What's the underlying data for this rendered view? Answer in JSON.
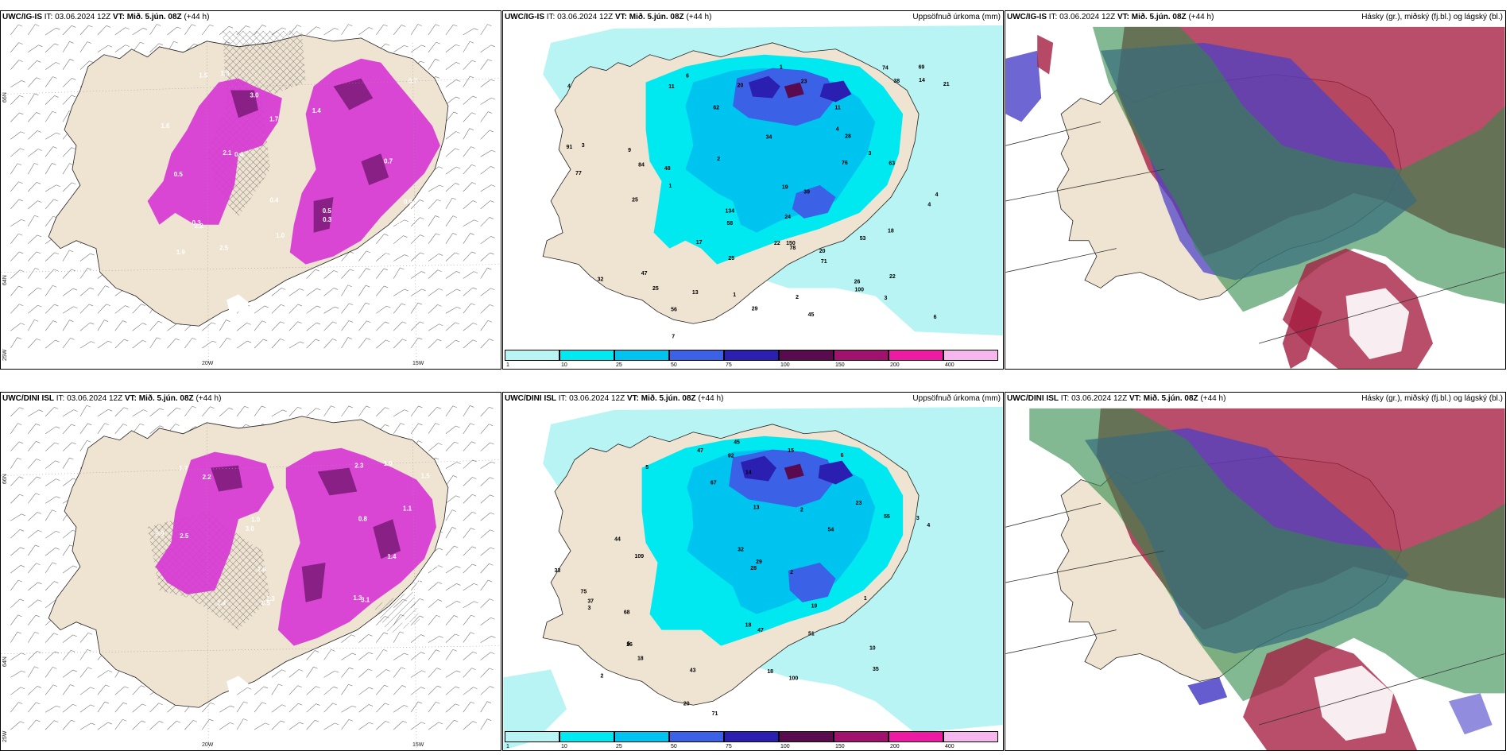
{
  "panels": [
    {
      "model": "UWC/IG-IS",
      "it_label": "IT:",
      "it_value": "03.06.2024 12Z",
      "vt_label": "VT:",
      "vt_value": "Mið. 5.jún. 08Z",
      "lead": "(+44 h)",
      "right_title": ""
    },
    {
      "model": "UWC/IG-IS",
      "it_label": "IT:",
      "it_value": "03.06.2024 12Z",
      "vt_label": "VT:",
      "vt_value": "Mið. 5.jún. 08Z",
      "lead": "(+44 h)",
      "right_title": "Uppsöfnuð úrkoma (mm)"
    },
    {
      "model": "UWC/IG-IS",
      "it_label": "IT:",
      "it_value": "03.06.2024 12Z",
      "vt_label": "VT:",
      "vt_value": "Mið. 5.jún. 08Z",
      "lead": "(+44 h)",
      "right_title": "Hásky (gr.), miðský (fj.bl.) og lágský (bl.)"
    },
    {
      "model": "UWC/DINI ISL",
      "it_label": "IT:",
      "it_value": "03.06.2024 12Z",
      "vt_label": "VT:",
      "vt_value": "Mið. 5.jún. 08Z",
      "lead": "(+44 h)",
      "right_title": ""
    },
    {
      "model": "UWC/DINI ISL",
      "it_label": "IT:",
      "it_value": "03.06.2024 12Z",
      "vt_label": "VT:",
      "vt_value": "Mið. 5.jún. 08Z",
      "lead": "(+44 h)",
      "right_title": "Uppsöfnuð úrkoma (mm)"
    },
    {
      "model": "UWC/DINI ISL",
      "it_label": "IT:",
      "it_value": "03.06.2024 12Z",
      "vt_label": "VT:",
      "vt_value": "Mið. 5.jún. 08Z",
      "lead": "(+44 h)",
      "right_title": "Hásky (gr.), miðský (fj.bl.) og lágský (bl.)"
    }
  ],
  "grid_labels": {
    "lat_66": "66N",
    "lat_64": "64N",
    "lon_25": "25W",
    "lon_20": "20W",
    "lon_15": "15W"
  },
  "legend": {
    "bins": [
      {
        "label": "1",
        "color": "#b8f4f4"
      },
      {
        "label": "10",
        "color": "#00e8f0"
      },
      {
        "label": "25",
        "color": "#00c4f0"
      },
      {
        "label": "50",
        "color": "#3b62e6"
      },
      {
        "label": "75",
        "color": "#2a1fb0"
      },
      {
        "label": "100",
        "color": "#5a0a4e"
      },
      {
        "label": "150",
        "color": "#a0126e"
      },
      {
        "label": "200",
        "color": "#ee1aa4"
      },
      {
        "label": "400",
        "color": "#f6b6ee"
      }
    ]
  },
  "precip_values": {
    "top": [
      "45",
      "11",
      "47",
      "9",
      "3",
      "2",
      "4",
      "1",
      "58",
      "25",
      "32",
      "91",
      "134",
      "150",
      "76",
      "74",
      "77",
      "38",
      "53",
      "63",
      "26",
      "78",
      "56",
      "100",
      "39",
      "28",
      "25",
      "84",
      "29",
      "62",
      "71",
      "69",
      "11",
      "13",
      "6",
      "1",
      "1",
      "3",
      "4",
      "20",
      "20",
      "19",
      "21",
      "22",
      "23",
      "18",
      "22",
      "25",
      "24",
      "14",
      "17",
      "34",
      "48",
      "4",
      "4",
      "6",
      "3",
      "2",
      "7"
    ],
    "bottom": [
      "2",
      "6",
      "5",
      "23",
      "47",
      "109",
      "68",
      "6",
      "55",
      "54",
      "75",
      "45",
      "51",
      "28",
      "71",
      "47",
      "35",
      "33",
      "26",
      "20",
      "100",
      "92",
      "67",
      "29",
      "32",
      "43",
      "37",
      "15",
      "13",
      "19",
      "44",
      "18",
      "18",
      "18",
      "10",
      "3",
      "3",
      "2",
      "2",
      "1",
      "4",
      "14"
    ]
  },
  "wind_values": {
    "top": [
      "0.5",
      "1.5",
      "2.1",
      "3.0",
      "1.3",
      "1.5",
      "0.4",
      "1.9",
      "2.5",
      "0.3",
      "1.6",
      "0.9",
      "0.6",
      "1.7",
      "0.5",
      "0.7",
      "1.4",
      "2.2",
      "0.3",
      "0.7",
      "1.0",
      "0.4"
    ],
    "bottom": [
      "2.3",
      "3.0",
      "1.3",
      "0.5",
      "1.9",
      "3.1",
      "1.4",
      "2.2",
      "0.8",
      "1.6",
      "3.0",
      "1.3",
      "1.0",
      "2.1",
      "0.9",
      "1.7",
      "1.1",
      "0.3",
      "1.5",
      "2.5",
      "0.6",
      "1.4"
    ]
  },
  "colors": {
    "land": "#efe3d2",
    "windfill": "#d838d4",
    "windcore": "#7a1a78",
    "cloud_high": "#2e8a4a",
    "cloud_mid": "#4a40c8",
    "cloud_low": "#a41c40"
  }
}
